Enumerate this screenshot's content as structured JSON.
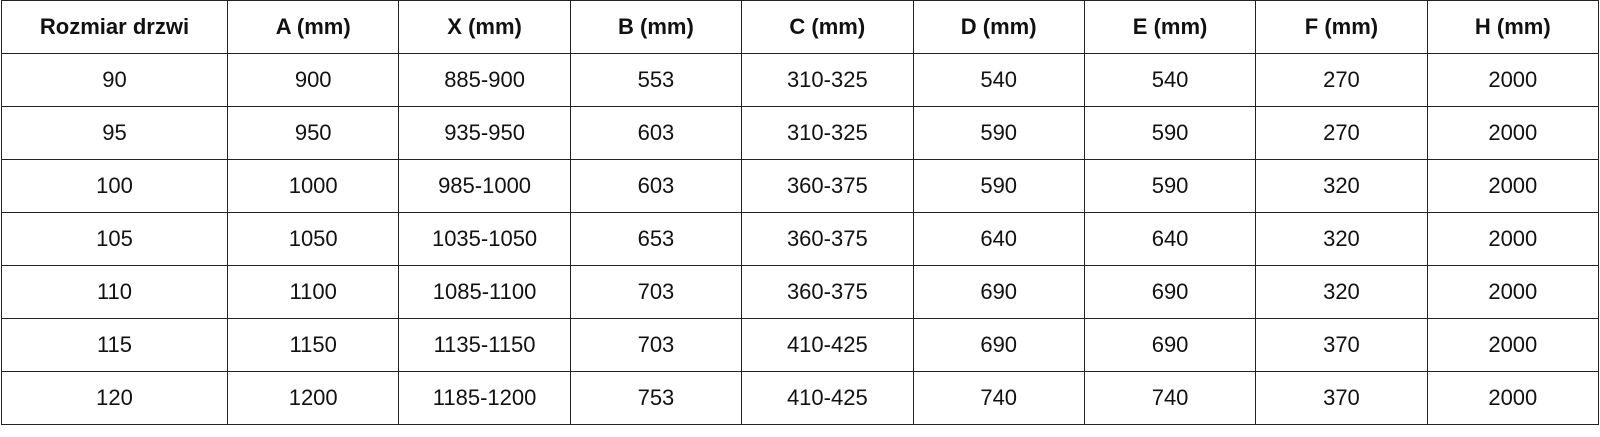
{
  "table": {
    "header": [
      "Rozmiar drzwi",
      "A (mm)",
      "X (mm)",
      "B (mm)",
      "C (mm)",
      "D (mm)",
      "E (mm)",
      "F (mm)",
      "H (mm)"
    ],
    "rows": [
      [
        90,
        900,
        "885-900",
        553,
        "310-325",
        540,
        540,
        270,
        2000
      ],
      [
        95,
        950,
        "935-950",
        603,
        "310-325",
        590,
        590,
        270,
        2000
      ],
      [
        100,
        1000,
        "985-1000",
        603,
        "360-375",
        590,
        590,
        320,
        2000
      ],
      [
        105,
        1050,
        "1035-1050",
        653,
        "360-375",
        640,
        640,
        320,
        2000
      ],
      [
        110,
        1100,
        "1085-1100",
        703,
        "360-375",
        690,
        690,
        320,
        2000
      ],
      [
        115,
        1150,
        "1135-1150",
        703,
        "410-425",
        690,
        690,
        370,
        2000
      ],
      [
        120,
        1200,
        "1185-1200",
        753,
        "410-425",
        740,
        740,
        370,
        2000
      ]
    ]
  }
}
